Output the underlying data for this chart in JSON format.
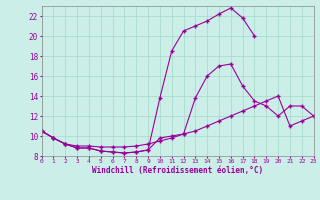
{
  "xlabel": "Windchill (Refroidissement éolien,°C)",
  "bg_color": "#cceee8",
  "line_color": "#990099",
  "grid_color": "#aaddcc",
  "xmin": 0,
  "xmax": 23,
  "ymin": 8,
  "ymax": 23,
  "yticks": [
    8,
    10,
    12,
    14,
    16,
    18,
    20,
    22
  ],
  "line1_x": [
    0,
    1,
    2,
    3,
    4,
    5,
    6,
    7,
    8,
    9,
    10,
    11,
    12,
    13,
    14,
    15,
    16,
    17,
    18
  ],
  "line1_y": [
    10.5,
    9.8,
    9.2,
    8.8,
    8.8,
    8.5,
    8.4,
    8.3,
    8.4,
    8.6,
    13.8,
    18.5,
    20.5,
    21.0,
    21.5,
    22.2,
    22.8,
    21.8,
    20.0
  ],
  "line2_x": [
    0,
    1,
    2,
    3,
    4,
    5,
    6,
    7,
    8,
    9,
    10,
    11,
    12,
    13,
    14,
    15,
    16,
    17,
    18,
    19,
    20,
    21,
    22,
    23
  ],
  "line2_y": [
    10.5,
    9.8,
    9.2,
    8.8,
    8.8,
    8.5,
    8.4,
    8.3,
    8.4,
    8.6,
    9.8,
    10.0,
    10.2,
    13.8,
    16.0,
    17.0,
    17.2,
    15.0,
    13.5,
    13.0,
    12.0,
    13.0,
    13.0,
    12.0
  ],
  "line3_x": [
    0,
    1,
    2,
    3,
    4,
    5,
    6,
    7,
    8,
    9,
    10,
    11,
    12,
    13,
    14,
    15,
    16,
    17,
    18,
    19,
    20,
    21,
    22,
    23
  ],
  "line3_y": [
    10.5,
    9.8,
    9.2,
    9.0,
    9.0,
    8.9,
    8.9,
    8.9,
    9.0,
    9.2,
    9.5,
    9.8,
    10.2,
    10.5,
    11.0,
    11.5,
    12.0,
    12.5,
    13.0,
    13.5,
    14.0,
    11.0,
    11.5,
    12.0
  ]
}
